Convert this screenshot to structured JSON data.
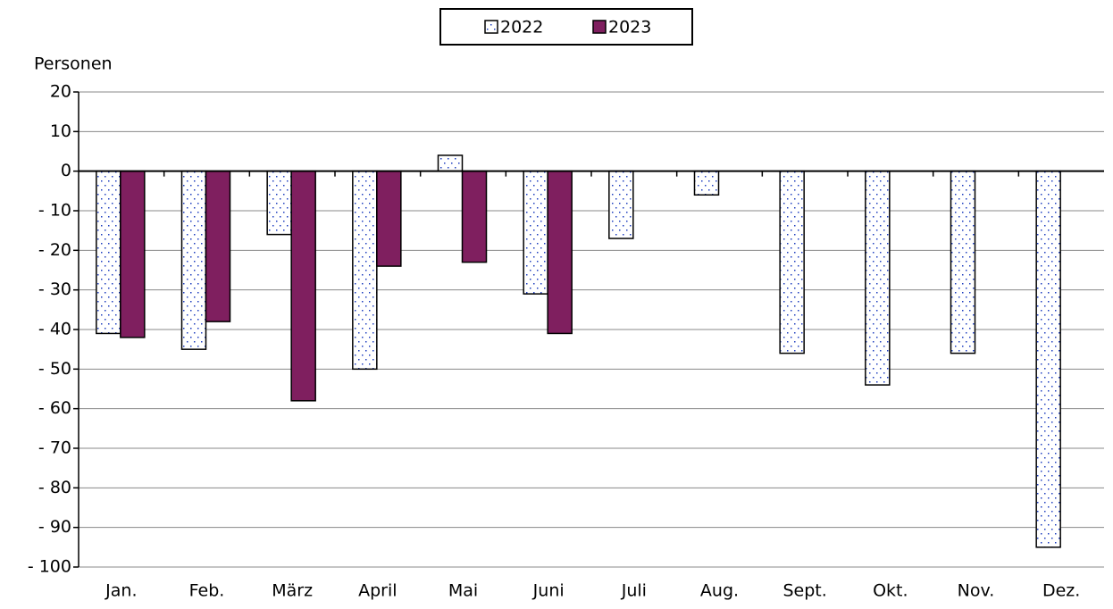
{
  "chart_data": {
    "type": "bar",
    "y_axis_label": "Personen",
    "categories": [
      "Jan.",
      "Feb.",
      "März",
      "April",
      "Mai",
      "Juni",
      "Juli",
      "Aug.",
      "Sept.",
      "Okt.",
      "Nov.",
      "Dez."
    ],
    "series": [
      {
        "name": "2022",
        "color": "#ffffff",
        "pattern": "dotted",
        "values": [
          -41,
          -45,
          -16,
          -50,
          4,
          -31,
          -17,
          -6,
          -46,
          -54,
          -46,
          -95
        ]
      },
      {
        "name": "2023",
        "color": "#7f1f5f",
        "values": [
          -42,
          -38,
          -58,
          -24,
          -23,
          -41,
          null,
          null,
          null,
          null,
          null,
          null
        ]
      }
    ],
    "ylim": [
      -100,
      20
    ],
    "yticks": [
      {
        "value": -100,
        "label": "- 100"
      },
      {
        "value": -90,
        "label": "- 90"
      },
      {
        "value": -80,
        "label": "- 80"
      },
      {
        "value": -70,
        "label": "- 70"
      },
      {
        "value": -60,
        "label": "- 60"
      },
      {
        "value": -50,
        "label": "- 50"
      },
      {
        "value": -40,
        "label": "- 40"
      },
      {
        "value": -30,
        "label": "- 30"
      },
      {
        "value": -20,
        "label": "- 20"
      },
      {
        "value": -10,
        "label": "- 10"
      },
      0,
      10,
      20
    ],
    "grid": true,
    "legend": "top"
  }
}
